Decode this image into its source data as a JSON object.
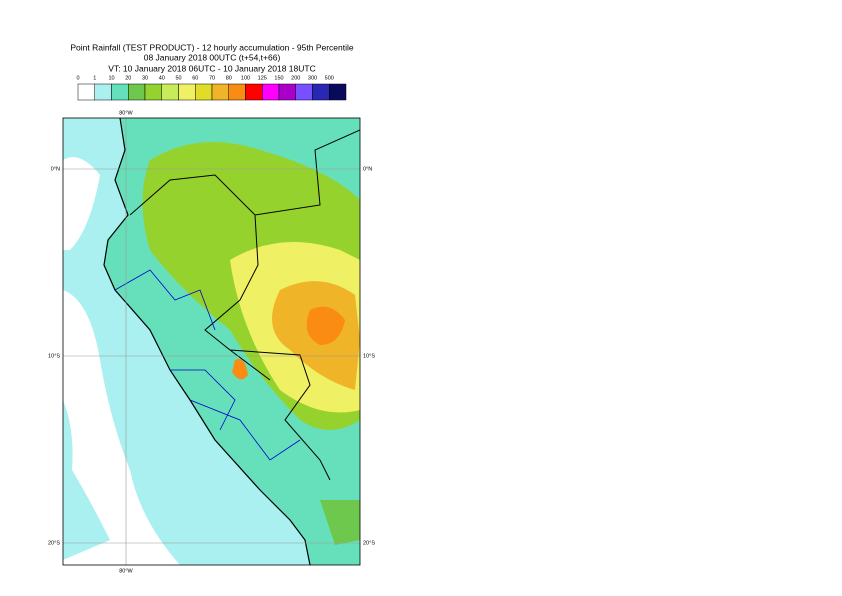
{
  "header": {
    "title": "Point Rainfall (TEST PRODUCT) - 12 hourly accumulation - 95th Percentile",
    "subtitle": "08 January 2018 00UTC (t+54,t+66)",
    "valid_time": "VT: 10 January 2018 06UTC - 10 January 2018 18UTC"
  },
  "legend": {
    "labels": [
      0,
      1,
      10,
      20,
      30,
      40,
      50,
      60,
      70,
      80,
      100,
      125,
      150,
      200,
      300,
      500
    ],
    "colors": [
      "#ffffff",
      "#aaf0f0",
      "#66e0bb",
      "#6fc84e",
      "#96d22d",
      "#c8eb5a",
      "#f0f064",
      "#e0dc28",
      "#f0b428",
      "#fa8c14",
      "#ff0000",
      "#ff00ff",
      "#aa00cc",
      "#7850ff",
      "#2828b4",
      "#0a0a5a"
    ]
  },
  "map": {
    "lat_labels": [
      "0°N",
      "10°S",
      "20°S"
    ],
    "lon_labels": [
      "80°W"
    ]
  }
}
